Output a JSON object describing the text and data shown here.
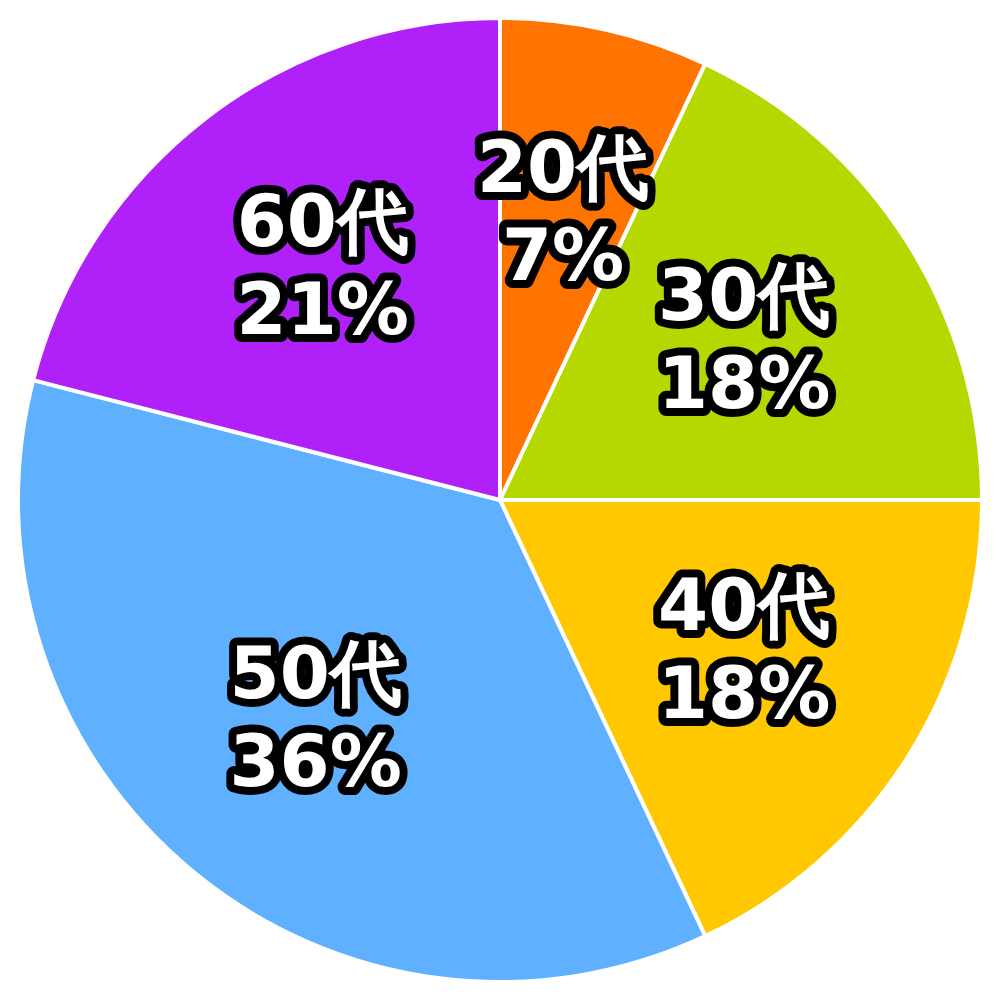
{
  "chart_data": {
    "type": "pie",
    "categories": [
      "20代",
      "30代",
      "40代",
      "50代",
      "60代"
    ],
    "values": [
      7,
      18,
      18,
      36,
      21
    ],
    "colors": [
      "#ff7300",
      "#b5d900",
      "#ffc800",
      "#5fb0ff",
      "#b020f8"
    ],
    "value_labels": [
      "7%",
      "18%",
      "18%",
      "36%",
      "21%"
    ]
  }
}
